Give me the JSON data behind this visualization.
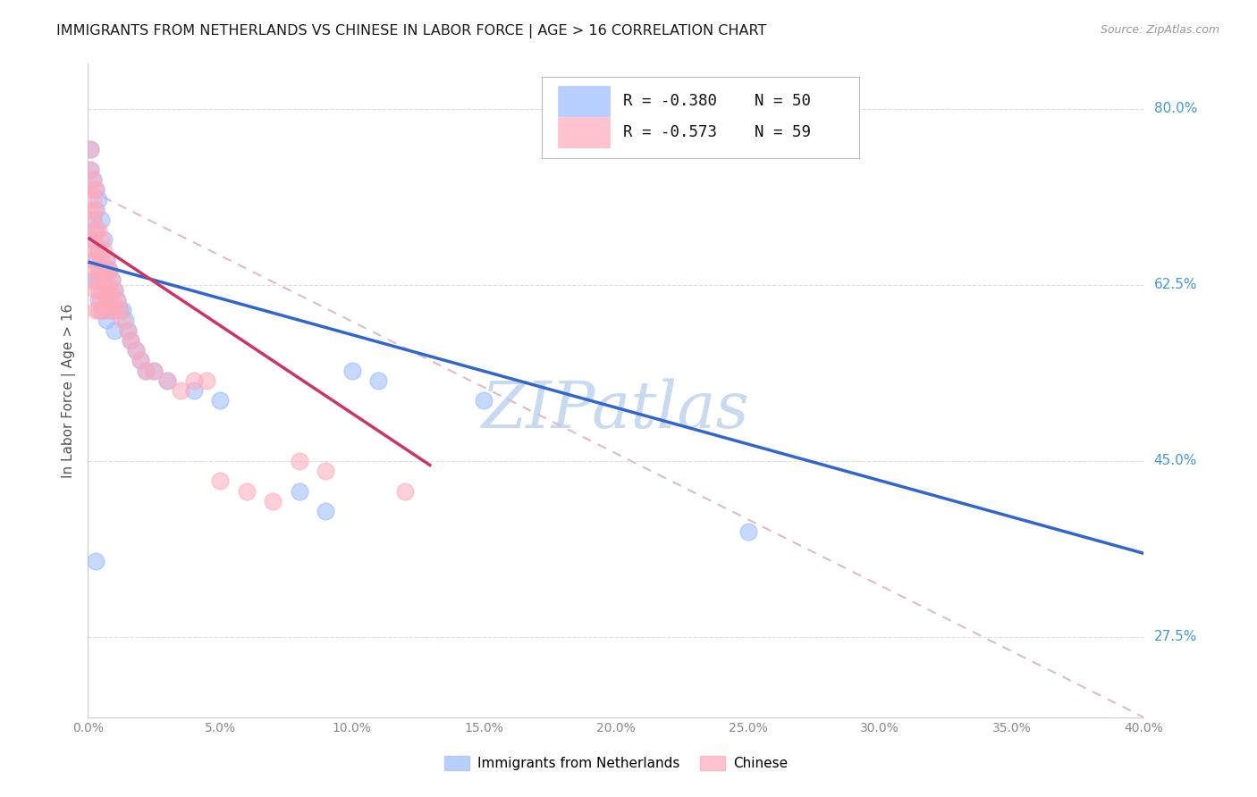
{
  "title": "IMMIGRANTS FROM NETHERLANDS VS CHINESE IN LABOR FORCE | AGE > 16 CORRELATION CHART",
  "source": "Source: ZipAtlas.com",
  "ylabel": "In Labor Force | Age > 16",
  "ytick_labels": [
    "80.0%",
    "62.5%",
    "45.0%",
    "27.5%"
  ],
  "ytick_values": [
    0.8,
    0.625,
    0.45,
    0.275
  ],
  "legend_blue_R": "R = -0.380",
  "legend_blue_N": "N = 50",
  "legend_pink_R": "R = -0.573",
  "legend_pink_N": "N = 59",
  "legend_label_blue": "Immigrants from Netherlands",
  "legend_label_pink": "Chinese",
  "title_color": "#1a1a1a",
  "source_color": "#999999",
  "blue_color": "#99bbff",
  "pink_color": "#ffaabb",
  "trendline_blue": "#3366cc",
  "trendline_pink": "#cc3366",
  "trendline_dashed_color": "#ddbbcc",
  "watermark_color": "#c8daf0",
  "right_label_color": "#4499cc",
  "xlim": [
    0.0,
    0.4
  ],
  "ylim": [
    0.195,
    0.845
  ],
  "blue_trend_x": [
    0.0,
    0.4
  ],
  "blue_trend_y": [
    0.648,
    0.358
  ],
  "pink_trend_x": [
    0.0,
    0.13
  ],
  "pink_trend_y": [
    0.672,
    0.445
  ],
  "dashed_trend_x": [
    0.0,
    0.4
  ],
  "dashed_trend_y": [
    0.72,
    0.195
  ],
  "blue_scatter": [
    [
      0.001,
      0.76
    ],
    [
      0.001,
      0.74
    ],
    [
      0.002,
      0.73
    ],
    [
      0.002,
      0.69
    ],
    [
      0.002,
      0.67
    ],
    [
      0.003,
      0.72
    ],
    [
      0.003,
      0.7
    ],
    [
      0.003,
      0.68
    ],
    [
      0.003,
      0.65
    ],
    [
      0.003,
      0.63
    ],
    [
      0.004,
      0.71
    ],
    [
      0.004,
      0.66
    ],
    [
      0.004,
      0.63
    ],
    [
      0.004,
      0.61
    ],
    [
      0.005,
      0.69
    ],
    [
      0.005,
      0.64
    ],
    [
      0.005,
      0.62
    ],
    [
      0.005,
      0.6
    ],
    [
      0.006,
      0.67
    ],
    [
      0.006,
      0.63
    ],
    [
      0.006,
      0.6
    ],
    [
      0.007,
      0.65
    ],
    [
      0.007,
      0.62
    ],
    [
      0.007,
      0.59
    ],
    [
      0.008,
      0.64
    ],
    [
      0.008,
      0.61
    ],
    [
      0.009,
      0.63
    ],
    [
      0.009,
      0.6
    ],
    [
      0.01,
      0.62
    ],
    [
      0.01,
      0.58
    ],
    [
      0.011,
      0.61
    ],
    [
      0.012,
      0.6
    ],
    [
      0.013,
      0.6
    ],
    [
      0.014,
      0.59
    ],
    [
      0.015,
      0.58
    ],
    [
      0.016,
      0.57
    ],
    [
      0.018,
      0.56
    ],
    [
      0.02,
      0.55
    ],
    [
      0.022,
      0.54
    ],
    [
      0.025,
      0.54
    ],
    [
      0.03,
      0.53
    ],
    [
      0.04,
      0.52
    ],
    [
      0.05,
      0.51
    ],
    [
      0.08,
      0.42
    ],
    [
      0.09,
      0.4
    ],
    [
      0.1,
      0.54
    ],
    [
      0.11,
      0.53
    ],
    [
      0.15,
      0.51
    ],
    [
      0.003,
      0.35
    ],
    [
      0.25,
      0.38
    ]
  ],
  "pink_scatter": [
    [
      0.001,
      0.76
    ],
    [
      0.001,
      0.74
    ],
    [
      0.001,
      0.72
    ],
    [
      0.001,
      0.7
    ],
    [
      0.002,
      0.73
    ],
    [
      0.002,
      0.71
    ],
    [
      0.002,
      0.69
    ],
    [
      0.002,
      0.67
    ],
    [
      0.002,
      0.65
    ],
    [
      0.002,
      0.63
    ],
    [
      0.003,
      0.72
    ],
    [
      0.003,
      0.7
    ],
    [
      0.003,
      0.68
    ],
    [
      0.003,
      0.66
    ],
    [
      0.003,
      0.64
    ],
    [
      0.003,
      0.62
    ],
    [
      0.003,
      0.6
    ],
    [
      0.004,
      0.68
    ],
    [
      0.004,
      0.66
    ],
    [
      0.004,
      0.64
    ],
    [
      0.004,
      0.62
    ],
    [
      0.004,
      0.6
    ],
    [
      0.005,
      0.67
    ],
    [
      0.005,
      0.65
    ],
    [
      0.005,
      0.63
    ],
    [
      0.005,
      0.61
    ],
    [
      0.006,
      0.66
    ],
    [
      0.006,
      0.64
    ],
    [
      0.006,
      0.62
    ],
    [
      0.006,
      0.6
    ],
    [
      0.007,
      0.65
    ],
    [
      0.007,
      0.63
    ],
    [
      0.007,
      0.61
    ],
    [
      0.008,
      0.64
    ],
    [
      0.008,
      0.62
    ],
    [
      0.008,
      0.6
    ],
    [
      0.009,
      0.63
    ],
    [
      0.009,
      0.61
    ],
    [
      0.01,
      0.62
    ],
    [
      0.01,
      0.6
    ],
    [
      0.011,
      0.61
    ],
    [
      0.012,
      0.6
    ],
    [
      0.013,
      0.59
    ],
    [
      0.015,
      0.58
    ],
    [
      0.016,
      0.57
    ],
    [
      0.018,
      0.56
    ],
    [
      0.02,
      0.55
    ],
    [
      0.022,
      0.54
    ],
    [
      0.025,
      0.54
    ],
    [
      0.03,
      0.53
    ],
    [
      0.035,
      0.52
    ],
    [
      0.04,
      0.53
    ],
    [
      0.045,
      0.53
    ],
    [
      0.05,
      0.43
    ],
    [
      0.06,
      0.42
    ],
    [
      0.07,
      0.41
    ],
    [
      0.08,
      0.45
    ],
    [
      0.09,
      0.44
    ],
    [
      0.12,
      0.42
    ]
  ]
}
